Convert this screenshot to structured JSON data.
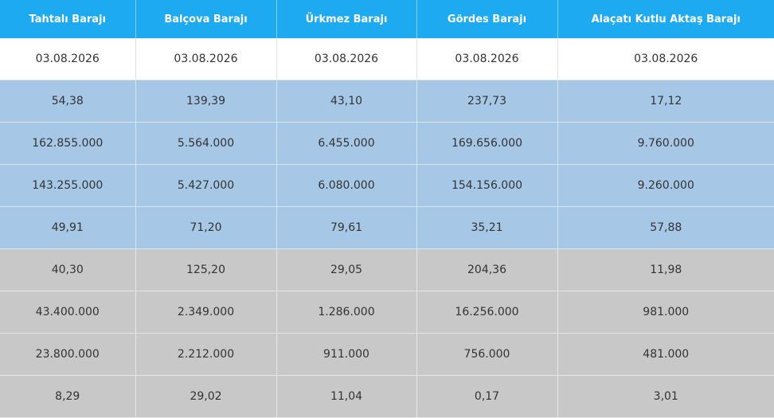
{
  "table": {
    "headers": [
      "Tahtalı Barajı",
      "Balçova Barajı",
      "Ürkmez Barajı",
      "Gördes Barajı",
      "Alaçatı Kutlu Aktaş Barajı"
    ],
    "dates": [
      "03.08.2026",
      "03.08.2026",
      "03.08.2026",
      "03.08.2026",
      "03.08.2026"
    ],
    "rows": [
      {
        "group": "blue",
        "cells": [
          "54,38",
          "139,39",
          "43,10",
          "237,73",
          "17,12"
        ]
      },
      {
        "group": "blue",
        "cells": [
          "162.855.000",
          "5.564.000",
          "6.455.000",
          "169.656.000",
          "9.760.000"
        ]
      },
      {
        "group": "blue",
        "cells": [
          "143.255.000",
          "5.427.000",
          "6.080.000",
          "154.156.000",
          "9.260.000"
        ]
      },
      {
        "group": "blue",
        "cells": [
          "49,91",
          "71,20",
          "79,61",
          "35,21",
          "57,88"
        ]
      },
      {
        "group": "gray",
        "cells": [
          "40,30",
          "125,20",
          "29,05",
          "204,36",
          "11,98"
        ]
      },
      {
        "group": "gray",
        "cells": [
          "43.400.000",
          "2.349.000",
          "1.286.000",
          "16.256.000",
          "981.000"
        ]
      },
      {
        "group": "gray",
        "cells": [
          "23.800.000",
          "2.212.000",
          "911.000",
          "756.000",
          "481.000"
        ]
      },
      {
        "group": "gray",
        "cells": [
          "8,29",
          "29,02",
          "11,04",
          "0,17",
          "3,01"
        ]
      }
    ]
  },
  "colors": {
    "header": "#1eaaf1",
    "blue_rows": "#a6c8e6",
    "gray_rows": "#c8c8c8"
  }
}
